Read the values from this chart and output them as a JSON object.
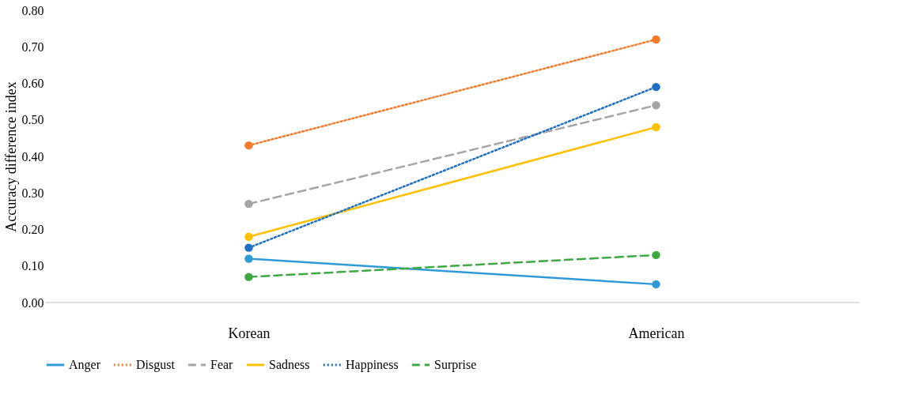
{
  "chart_data": {
    "type": "line",
    "ylabel": "Accuracy difference index",
    "categories": [
      "Korean",
      "American"
    ],
    "series": [
      {
        "name": "Anger",
        "color": "#2e9bd6",
        "line_style": "solid",
        "values": [
          0.12,
          0.05
        ]
      },
      {
        "name": "Disgust",
        "color": "#f47b2a",
        "line_style": "dotted",
        "values": [
          0.43,
          0.72
        ]
      },
      {
        "name": "Fear",
        "color": "#a5a5a5",
        "line_style": "dashed",
        "values": [
          0.27,
          0.54
        ]
      },
      {
        "name": "Sadness",
        "color": "#ffc000",
        "line_style": "solid",
        "values": [
          0.18,
          0.48
        ]
      },
      {
        "name": "Happiness",
        "color": "#1f6fc4",
        "line_style": "dotted",
        "values": [
          0.15,
          0.59
        ]
      },
      {
        "name": "Surprise",
        "color": "#3ea843",
        "line_style": "dashed",
        "values": [
          0.07,
          0.13
        ]
      }
    ],
    "ylim": [
      0,
      0.8
    ],
    "yticks": [
      {
        "value": 0,
        "label": "0.00"
      },
      {
        "value": 0.1,
        "label": "0.10"
      },
      {
        "value": 0.2,
        "label": "0.20"
      },
      {
        "value": 0.3,
        "label": "0.30"
      },
      {
        "value": 0.4,
        "label": "0.40"
      },
      {
        "value": 0.5,
        "label": "0.50"
      },
      {
        "value": 0.6,
        "label": "0.60"
      },
      {
        "value": 0.7,
        "label": "0.70"
      },
      {
        "value": 0.8,
        "label": "0.80"
      }
    ],
    "grid": false,
    "legend": "bottom",
    "marker": "circle"
  }
}
